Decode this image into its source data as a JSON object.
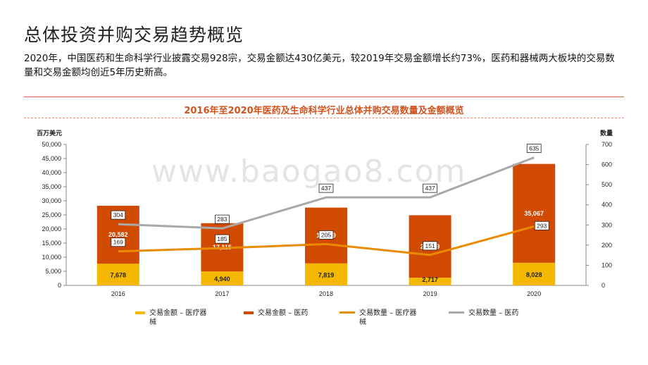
{
  "page": {
    "title": "总体投资并购交易趋势概览",
    "intro": "2020年，中国医药和生命科学行业披露交易928宗，交易金额达430亿美元，较2019年交易金额增长约73%，医药和器械两大板块的交易数量和交易金额均创近5年历史新高。",
    "watermark": "www.baogao8.com"
  },
  "legend": {
    "items": [
      {
        "label": "交易金额 – 医疗器械",
        "color": "#f5b800",
        "kind": "bar"
      },
      {
        "label": "交易金额 – 医药",
        "color": "#d04a02",
        "kind": "bar"
      },
      {
        "label": "交易数量 – 医疗器械",
        "color": "#eb8c00",
        "kind": "line"
      },
      {
        "label": "交易数量 – 医药",
        "color": "#a9a9a9",
        "kind": "line"
      }
    ]
  },
  "chart_data": {
    "type": "bar",
    "title": "2016年至2020年医药及生命科学行业总体并购交易数量及金额概览",
    "categories": [
      "2016",
      "2017",
      "2018",
      "2019",
      "2020"
    ],
    "ylabel": "百万美元",
    "ylabel_right": "数量",
    "ylim": [
      0,
      50000
    ],
    "ylim_right": [
      0,
      700
    ],
    "yticks": [
      "0",
      "5,000",
      "10,000",
      "15,000",
      "20,000",
      "25,000",
      "30,000",
      "35,000",
      "40,000",
      "45,000",
      "50,000"
    ],
    "yticks_right": [
      "0",
      "100",
      "200",
      "300",
      "400",
      "500",
      "600",
      "700"
    ],
    "bar_series": [
      {
        "name": "交易金额 – 医疗器械",
        "values": [
          7678,
          4940,
          7819,
          2717,
          8028
        ],
        "labels": [
          "7,678",
          "4,940",
          "7,819",
          "2,717",
          "8,028"
        ],
        "color": "#f5b800"
      },
      {
        "name": "交易金额 – 医药",
        "values": [
          20582,
          17115,
          19769,
          22169,
          35067
        ],
        "labels": [
          "20,582",
          "17,115",
          "19,769",
          "22,169",
          "35,067"
        ],
        "color": "#d04a02"
      }
    ],
    "line_series": [
      {
        "name": "交易数量 – 医疗器械",
        "values": [
          169,
          185,
          205,
          151,
          293
        ],
        "labels": [
          "169",
          "185",
          "205",
          "151",
          "293"
        ],
        "color": "#eb8c00"
      },
      {
        "name": "交易数量 – 医药",
        "values": [
          304,
          283,
          437,
          437,
          635
        ],
        "labels": [
          "304",
          "283",
          "437",
          "437",
          "635"
        ],
        "color": "#a9a9a9"
      }
    ]
  }
}
